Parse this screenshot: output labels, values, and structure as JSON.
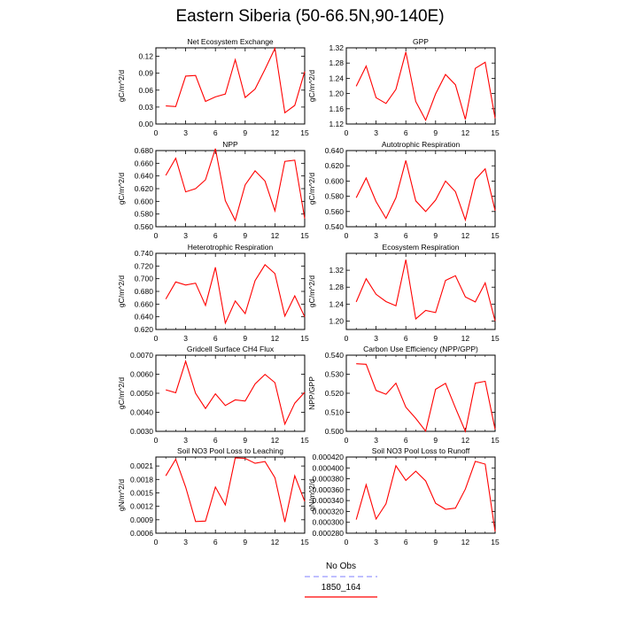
{
  "title": "Eastern Siberia (50-66.5N,90-140E)",
  "legend": {
    "entries": [
      {
        "label": "No Obs",
        "color": "#9999ff",
        "style": "dashed"
      },
      {
        "label": "1850_164",
        "color": "#ff0000",
        "style": "solid"
      }
    ]
  },
  "chart_data": [
    {
      "type": "line",
      "title": "Net Ecosystem Exchange",
      "ylabel": "gC/m^2/d",
      "xlim": [
        0,
        15
      ],
      "xticks": [
        0,
        3,
        6,
        9,
        12,
        15
      ],
      "ylim": [
        0.0,
        0.135
      ],
      "yticks": [
        0.0,
        0.03,
        0.06,
        0.09,
        0.12
      ],
      "ytick_labels": [
        "0.00",
        "0.03",
        "0.06",
        "0.09",
        "0.12"
      ],
      "series": [
        {
          "x": [
            1,
            2,
            3,
            4,
            5,
            6,
            7,
            8,
            9,
            10,
            11,
            12,
            13,
            14,
            15
          ],
          "values": [
            0.032,
            0.031,
            0.085,
            0.086,
            0.04,
            0.048,
            0.053,
            0.114,
            0.047,
            0.062,
            0.097,
            0.134,
            0.02,
            0.033,
            0.093
          ],
          "color": "#ff0000"
        }
      ]
    },
    {
      "type": "line",
      "title": "GPP",
      "ylabel": "gC/m^2/d",
      "xlim": [
        0,
        15
      ],
      "xticks": [
        0,
        3,
        6,
        9,
        12,
        15
      ],
      "ylim": [
        1.12,
        1.32
      ],
      "yticks": [
        1.12,
        1.16,
        1.2,
        1.24,
        1.28,
        1.32
      ],
      "ytick_labels": [
        "1.12",
        "1.16",
        "1.20",
        "1.24",
        "1.28",
        "1.32"
      ],
      "series": [
        {
          "x": [
            1,
            2,
            3,
            4,
            5,
            6,
            7,
            8,
            9,
            10,
            11,
            12,
            13,
            14,
            15
          ],
          "values": [
            1.219,
            1.272,
            1.189,
            1.174,
            1.211,
            1.309,
            1.179,
            1.13,
            1.199,
            1.25,
            1.223,
            1.132,
            1.266,
            1.282,
            1.135
          ],
          "color": "#ff0000"
        }
      ]
    },
    {
      "type": "line",
      "title": "NPP",
      "ylabel": "gC/m^2/d",
      "xlim": [
        0,
        15
      ],
      "xticks": [
        0,
        3,
        6,
        9,
        12,
        15
      ],
      "ylim": [
        0.56,
        0.68
      ],
      "yticks": [
        0.56,
        0.58,
        0.6,
        0.62,
        0.64,
        0.66,
        0.68
      ],
      "ytick_labels": [
        "0.560",
        "0.580",
        "0.600",
        "0.620",
        "0.640",
        "0.660",
        "0.680"
      ],
      "series": [
        {
          "x": [
            1,
            2,
            3,
            4,
            5,
            6,
            7,
            8,
            9,
            10,
            11,
            12,
            13,
            14,
            15
          ],
          "values": [
            0.641,
            0.668,
            0.615,
            0.62,
            0.634,
            0.683,
            0.601,
            0.57,
            0.626,
            0.648,
            0.632,
            0.585,
            0.663,
            0.665,
            0.573
          ],
          "color": "#ff0000"
        }
      ]
    },
    {
      "type": "line",
      "title": "Autotrophic Respiration",
      "ylabel": "gC/m^2/d",
      "xlim": [
        0,
        15
      ],
      "xticks": [
        0,
        3,
        6,
        9,
        12,
        15
      ],
      "ylim": [
        0.54,
        0.64
      ],
      "yticks": [
        0.54,
        0.56,
        0.58,
        0.6,
        0.62,
        0.64
      ],
      "ytick_labels": [
        "0.540",
        "0.560",
        "0.580",
        "0.600",
        "0.620",
        "0.640"
      ],
      "series": [
        {
          "x": [
            1,
            2,
            3,
            4,
            5,
            6,
            7,
            8,
            9,
            10,
            11,
            12,
            13,
            14,
            15
          ],
          "values": [
            0.578,
            0.604,
            0.573,
            0.551,
            0.578,
            0.627,
            0.574,
            0.56,
            0.575,
            0.6,
            0.586,
            0.549,
            0.602,
            0.616,
            0.561
          ],
          "color": "#ff0000"
        }
      ]
    },
    {
      "type": "line",
      "title": "Heterotrophic Respiration",
      "ylabel": "gC/m^2/d",
      "xlim": [
        0,
        15
      ],
      "xticks": [
        0,
        3,
        6,
        9,
        12,
        15
      ],
      "ylim": [
        0.62,
        0.74
      ],
      "yticks": [
        0.62,
        0.64,
        0.66,
        0.68,
        0.7,
        0.72,
        0.74
      ],
      "ytick_labels": [
        "0.620",
        "0.640",
        "0.660",
        "0.680",
        "0.700",
        "0.720",
        "0.740"
      ],
      "series": [
        {
          "x": [
            1,
            2,
            3,
            4,
            5,
            6,
            7,
            8,
            9,
            10,
            11,
            12,
            13,
            14,
            15
          ],
          "values": [
            0.668,
            0.695,
            0.69,
            0.693,
            0.658,
            0.718,
            0.63,
            0.665,
            0.645,
            0.697,
            0.722,
            0.708,
            0.641,
            0.673,
            0.64
          ],
          "color": "#ff0000"
        }
      ]
    },
    {
      "type": "line",
      "title": "Ecosystem Respiration",
      "ylabel": "gC/m^2/d",
      "xlim": [
        0,
        15
      ],
      "xticks": [
        0,
        3,
        6,
        9,
        12,
        15
      ],
      "ylim": [
        1.18,
        1.36
      ],
      "yticks": [
        1.2,
        1.24,
        1.28,
        1.32
      ],
      "ytick_labels": [
        "1.20",
        "1.24",
        "1.28",
        "1.32"
      ],
      "series": [
        {
          "x": [
            1,
            2,
            3,
            4,
            5,
            6,
            7,
            8,
            9,
            10,
            11,
            12,
            13,
            14,
            15
          ],
          "values": [
            1.245,
            1.3,
            1.263,
            1.246,
            1.236,
            1.345,
            1.205,
            1.225,
            1.22,
            1.296,
            1.307,
            1.257,
            1.245,
            1.29,
            1.2
          ],
          "color": "#ff0000"
        }
      ]
    },
    {
      "type": "line",
      "title": "Gridcell Surface CH4 Flux",
      "ylabel": "gC/m^2/d",
      "xlim": [
        0,
        15
      ],
      "xticks": [
        0,
        3,
        6,
        9,
        12,
        15
      ],
      "ylim": [
        0.003,
        0.007
      ],
      "yticks": [
        0.003,
        0.004,
        0.005,
        0.006,
        0.007
      ],
      "ytick_labels": [
        "0.0030",
        "0.0040",
        "0.0050",
        "0.0060",
        "0.0070"
      ],
      "series": [
        {
          "x": [
            1,
            2,
            3,
            4,
            5,
            6,
            7,
            8,
            9,
            10,
            11,
            12,
            13,
            14,
            15
          ],
          "values": [
            0.00518,
            0.00503,
            0.00668,
            0.005,
            0.0042,
            0.00497,
            0.00436,
            0.00465,
            0.00459,
            0.00549,
            0.00599,
            0.00556,
            0.00338,
            0.00448,
            0.00505
          ],
          "color": "#ff0000"
        }
      ]
    },
    {
      "type": "line",
      "title": "Carbon Use Efficiency (NPP/GPP)",
      "ylabel": "NPP/GPP",
      "xlim": [
        0,
        15
      ],
      "xticks": [
        0,
        3,
        6,
        9,
        12,
        15
      ],
      "ylim": [
        0.5,
        0.54
      ],
      "yticks": [
        0.5,
        0.51,
        0.52,
        0.53,
        0.54
      ],
      "ytick_labels": [
        "0.500",
        "0.510",
        "0.520",
        "0.530",
        "0.540"
      ],
      "series": [
        {
          "x": [
            1,
            2,
            3,
            4,
            5,
            6,
            7,
            8,
            9,
            10,
            11,
            12,
            13,
            14,
            15
          ],
          "values": [
            0.5355,
            0.5352,
            0.5215,
            0.5195,
            0.5253,
            0.5127,
            0.5068,
            0.5001,
            0.5221,
            0.5252,
            0.5123,
            0.5,
            0.5253,
            0.5263,
            0.501
          ],
          "color": "#ff0000"
        }
      ]
    },
    {
      "type": "line",
      "title": "Soil NO3 Pool Loss to Leaching",
      "ylabel": "gN/m^2/d",
      "xlim": [
        0,
        15
      ],
      "xticks": [
        0,
        3,
        6,
        9,
        12,
        15
      ],
      "ylim": [
        0.0006,
        0.0023
      ],
      "yticks": [
        0.0006,
        0.0009,
        0.0012,
        0.0015,
        0.0018,
        0.0021
      ],
      "ytick_labels": [
        "0.0006",
        "0.0009",
        "0.0012",
        "0.0015",
        "0.0018",
        "0.0021"
      ],
      "series": [
        {
          "x": [
            1,
            2,
            3,
            4,
            5,
            6,
            7,
            8,
            9,
            10,
            11,
            12,
            13,
            14,
            15
          ],
          "values": [
            0.00188,
            0.00225,
            0.00163,
            0.00086,
            0.00087,
            0.00163,
            0.00123,
            0.00228,
            0.00227,
            0.00216,
            0.0022,
            0.00184,
            0.00085,
            0.00188,
            0.00131
          ],
          "color": "#ff0000"
        }
      ]
    },
    {
      "type": "line",
      "title": "Soil NO3 Pool Loss to Runoff",
      "ylabel": "gN/m^2/d",
      "xlim": [
        0,
        15
      ],
      "xticks": [
        0,
        3,
        6,
        9,
        12,
        15
      ],
      "ylim": [
        0.00028,
        0.00042
      ],
      "yticks": [
        0.00028,
        0.0003,
        0.00032,
        0.00034,
        0.00036,
        0.00038,
        0.0004,
        0.00042
      ],
      "ytick_labels": [
        "0.000280",
        "0.000300",
        "0.000320",
        "0.000340",
        "0.000360",
        "0.000380",
        "0.000400",
        "0.000420"
      ],
      "series": [
        {
          "x": [
            1,
            2,
            3,
            4,
            5,
            6,
            7,
            8,
            9,
            10,
            11,
            12,
            13,
            14,
            15
          ],
          "values": [
            0.000305,
            0.000369,
            0.000306,
            0.000334,
            0.000404,
            0.000377,
            0.000394,
            0.000376,
            0.000335,
            0.000324,
            0.000326,
            0.000361,
            0.000412,
            0.000407,
            0.000283
          ],
          "color": "#ff0000"
        }
      ]
    }
  ]
}
